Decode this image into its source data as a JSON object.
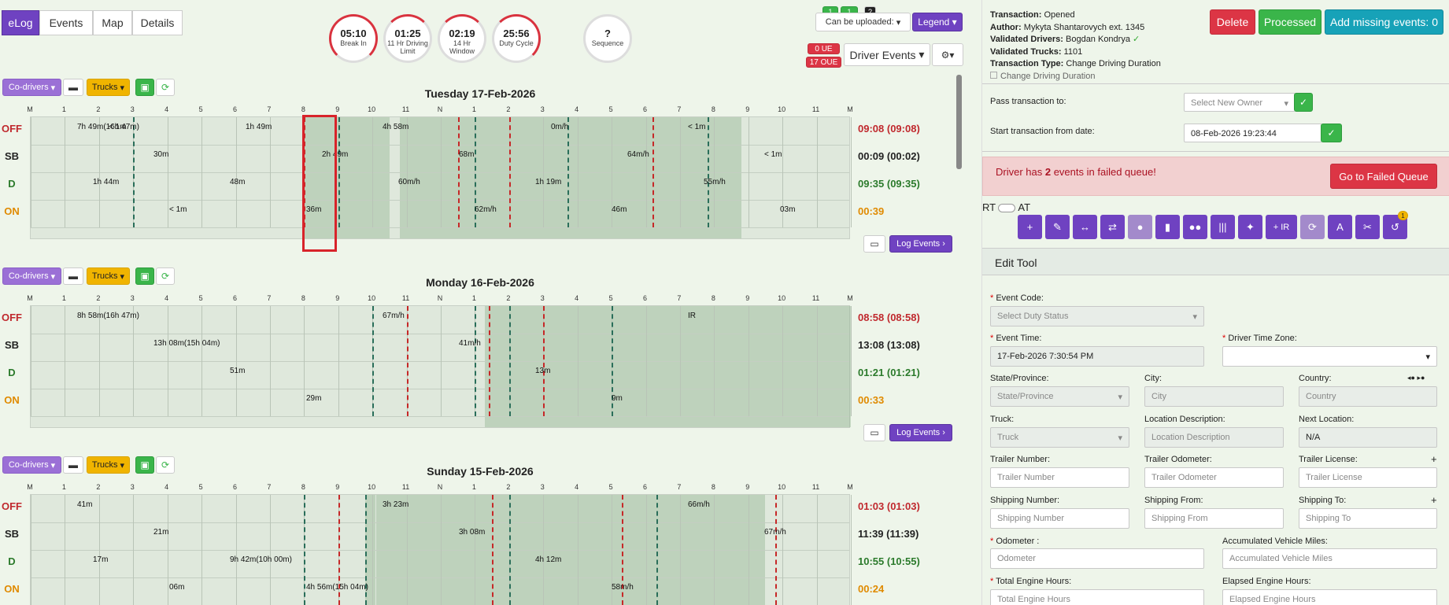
{
  "nav": {
    "tabs": [
      "eLog",
      "Events",
      "Map",
      "Details"
    ]
  },
  "gauges": [
    {
      "value": "05:10",
      "label": "Break In"
    },
    {
      "value": "01:25",
      "label": "11 Hr Driving Limit"
    },
    {
      "value": "02:19",
      "label": "14 Hr Window"
    },
    {
      "value": "25:56",
      "label": "Duty Cycle"
    },
    {
      "value": "?",
      "label": "Sequence"
    }
  ],
  "top_right": {
    "badges": [
      "1",
      "1",
      "?"
    ],
    "uploadable": "Can be uploaded:",
    "legend": "Legend",
    "ue": "0 UE",
    "oue": "17 OUE",
    "driver_events": "Driver Events"
  },
  "toolbar": {
    "codrivers": "Co-drivers",
    "trucks": "Trucks",
    "log_events": "Log Events",
    "bell_badge": "1"
  },
  "hour_labels": [
    "M",
    "1",
    "2",
    "3",
    "4",
    "5",
    "6",
    "7",
    "8",
    "9",
    "10",
    "11",
    "N",
    "1",
    "2",
    "3",
    "4",
    "5",
    "6",
    "7",
    "8",
    "9",
    "10",
    "11",
    "M"
  ],
  "row_labels": [
    "OFF",
    "SB",
    "D",
    "ON"
  ],
  "days": [
    {
      "title": "Tuesday 17-Feb-2026",
      "totals": [
        "09:08 (09:08)",
        "00:09 (00:02)",
        "09:35 (09:35)",
        "00:39"
      ],
      "labels": [
        "7h 49m(16h 47m)",
        "30m",
        "48m",
        "36m",
        "4h 58m",
        "68m",
        "1h 19m",
        "46m",
        "< 1m",
        "< 1m",
        "1h 44m",
        "< 1m",
        "1h 49m",
        "2h 49m",
        "60m/h",
        "62m/h",
        "0m/h",
        "64m/h",
        "55m/h",
        "03m",
        "< 1m"
      ]
    },
    {
      "title": "Monday 16-Feb-2026",
      "totals": [
        "08:58 (08:58)",
        "13:08 (13:08)",
        "01:21 (01:21)",
        "00:33"
      ],
      "labels": [
        "8h 58m(16h 47m)",
        "13h 08m(15h 04m)",
        "51m",
        "29m",
        "67m/h",
        "41m/h",
        "13m",
        "9m",
        "IR"
      ]
    },
    {
      "title": "Sunday 15-Feb-2026",
      "totals": [
        "01:03 (01:03)",
        "11:39 (11:39)",
        "10:55 (10:55)",
        "00:24"
      ],
      "labels": [
        "41m",
        "21m",
        "9h 42m(10h 00m)",
        "4h 56m(15h 04m)",
        "3h 23m",
        "3h 08m",
        "4h 12m",
        "58m/h",
        "66m/h",
        "67m/h",
        "17m",
        "06m"
      ]
    }
  ],
  "transaction": {
    "lines": [
      [
        "Transaction:",
        "Opened"
      ],
      [
        "Author:",
        "Mykyta Shantarovych ext. 1345"
      ],
      [
        "Validated Drivers:",
        "Bogdan Kondrya"
      ],
      [
        "Validated Trucks:",
        "1101"
      ],
      [
        "Transaction Type:",
        "Change Driving Duration"
      ]
    ],
    "change_driving": "Change Driving Duration",
    "delete": "Delete",
    "processed": "Processed",
    "add_missing": "Add missing events: 0",
    "pass_to": "Pass transaction to:",
    "owner_placeholder": "Select New Owner",
    "start_from": "Start transaction from date:",
    "start_date": "08-Feb-2026 19:23:44"
  },
  "alert": {
    "pre": "Driver has ",
    "count": "2",
    "post": " events in failed queue!",
    "button": "Go to Failed Queue"
  },
  "rt_at": {
    "rt": "RT",
    "at": "AT"
  },
  "edit_tool": {
    "title": "Edit Tool",
    "event_code": "Event Code:",
    "event_code_ph": "Select Duty Status",
    "event_time": "Event Time:",
    "event_time_val": "17-Feb-2026 7:30:54 PM",
    "tz": "Driver Time Zone:",
    "state": "State/Province:",
    "state_ph": "State/Province",
    "city": "City:",
    "city_ph": "City",
    "country": "Country:",
    "country_ph": "Country",
    "truck": "Truck:",
    "truck_ph": "Truck",
    "loc": "Location Description:",
    "loc_ph": "Location Description",
    "next": "Next Location:",
    "next_val": "N/A",
    "trailer_num": "Trailer Number:",
    "trailer_num_ph": "Trailer Number",
    "trailer_odo": "Trailer Odometer:",
    "trailer_odo_ph": "Trailer Odometer",
    "trailer_lic": "Trailer License:",
    "trailer_lic_ph": "Trailer License",
    "ship_num": "Shipping Number:",
    "ship_num_ph": "Shipping Number",
    "ship_from": "Shipping From:",
    "ship_from_ph": "Shipping From",
    "ship_to": "Shipping To:",
    "ship_to_ph": "Shipping To",
    "odometer": "Odometer :",
    "odometer_ph": "Odometer",
    "acc_miles": "Accumulated Vehicle Miles:",
    "acc_miles_ph": "Accumulated Vehicle Miles",
    "total_hours": "Total Engine Hours:",
    "total_hours_ph": "Total Engine Hours",
    "elapsed_hours": "Elapsed Engine Hours:",
    "elapsed_hours_ph": "Elapsed Engine Hours"
  }
}
